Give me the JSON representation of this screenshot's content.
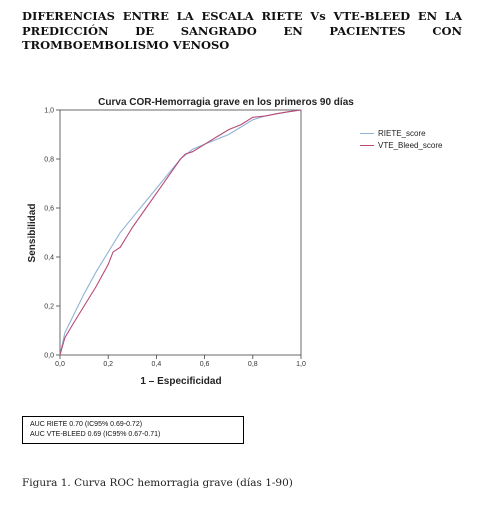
{
  "heading": "DIFERENCIAS ENTRE LA ESCALA RIETE Vs VTE-BLEED EN LA PREDICCIÓN DE SANGRADO EN PACIENTES CON TROMBOEMBOLISMO VENOSO",
  "auc_box": {
    "line1": "AUC RIETE  0.70 (IC95% 0.69-0.72)",
    "line2": "AUC VTE-BLEED  0.69 (IC95% 0.67-0.71)"
  },
  "caption": "Figura 1. Curva ROC hemorragia grave (días 1-90)",
  "chart_data": {
    "type": "line",
    "title": "Curva COR-Hemorragia grave en los primeros 90 días",
    "xlabel": "1 – Especificidad",
    "ylabel": "Sensibilidad",
    "xlim": [
      0,
      1
    ],
    "ylim": [
      0,
      1
    ],
    "xticks": [
      "0,0",
      "0,2",
      "0,4",
      "0,6",
      "0,8",
      "1,0"
    ],
    "yticks": [
      "0,0",
      "0,2",
      "0,4",
      "0,6",
      "0,8",
      "1,0"
    ],
    "grid": false,
    "legend_position": "right",
    "series": [
      {
        "name": "RIETE_score",
        "color": "#8fb4d8",
        "x": [
          0,
          0.02,
          0.05,
          0.1,
          0.15,
          0.2,
          0.25,
          0.3,
          0.35,
          0.4,
          0.45,
          0.5,
          0.55,
          0.6,
          0.65,
          0.7,
          0.75,
          0.8,
          0.85,
          0.9,
          0.95,
          1.0
        ],
        "y": [
          0,
          0.09,
          0.15,
          0.25,
          0.34,
          0.42,
          0.5,
          0.56,
          0.62,
          0.68,
          0.74,
          0.8,
          0.84,
          0.86,
          0.88,
          0.9,
          0.93,
          0.96,
          0.975,
          0.985,
          0.993,
          1.0
        ]
      },
      {
        "name": "VTE_Bleed_score",
        "color": "#b84a78",
        "x": [
          0,
          0.02,
          0.05,
          0.1,
          0.15,
          0.2,
          0.22,
          0.25,
          0.3,
          0.35,
          0.4,
          0.45,
          0.5,
          0.52,
          0.55,
          0.6,
          0.65,
          0.7,
          0.75,
          0.8,
          0.85,
          0.9,
          0.95,
          1.0
        ],
        "y": [
          0,
          0.07,
          0.12,
          0.2,
          0.28,
          0.37,
          0.42,
          0.44,
          0.52,
          0.59,
          0.66,
          0.73,
          0.8,
          0.82,
          0.83,
          0.86,
          0.89,
          0.92,
          0.94,
          0.97,
          0.975,
          0.985,
          0.993,
          1.0
        ]
      }
    ]
  }
}
